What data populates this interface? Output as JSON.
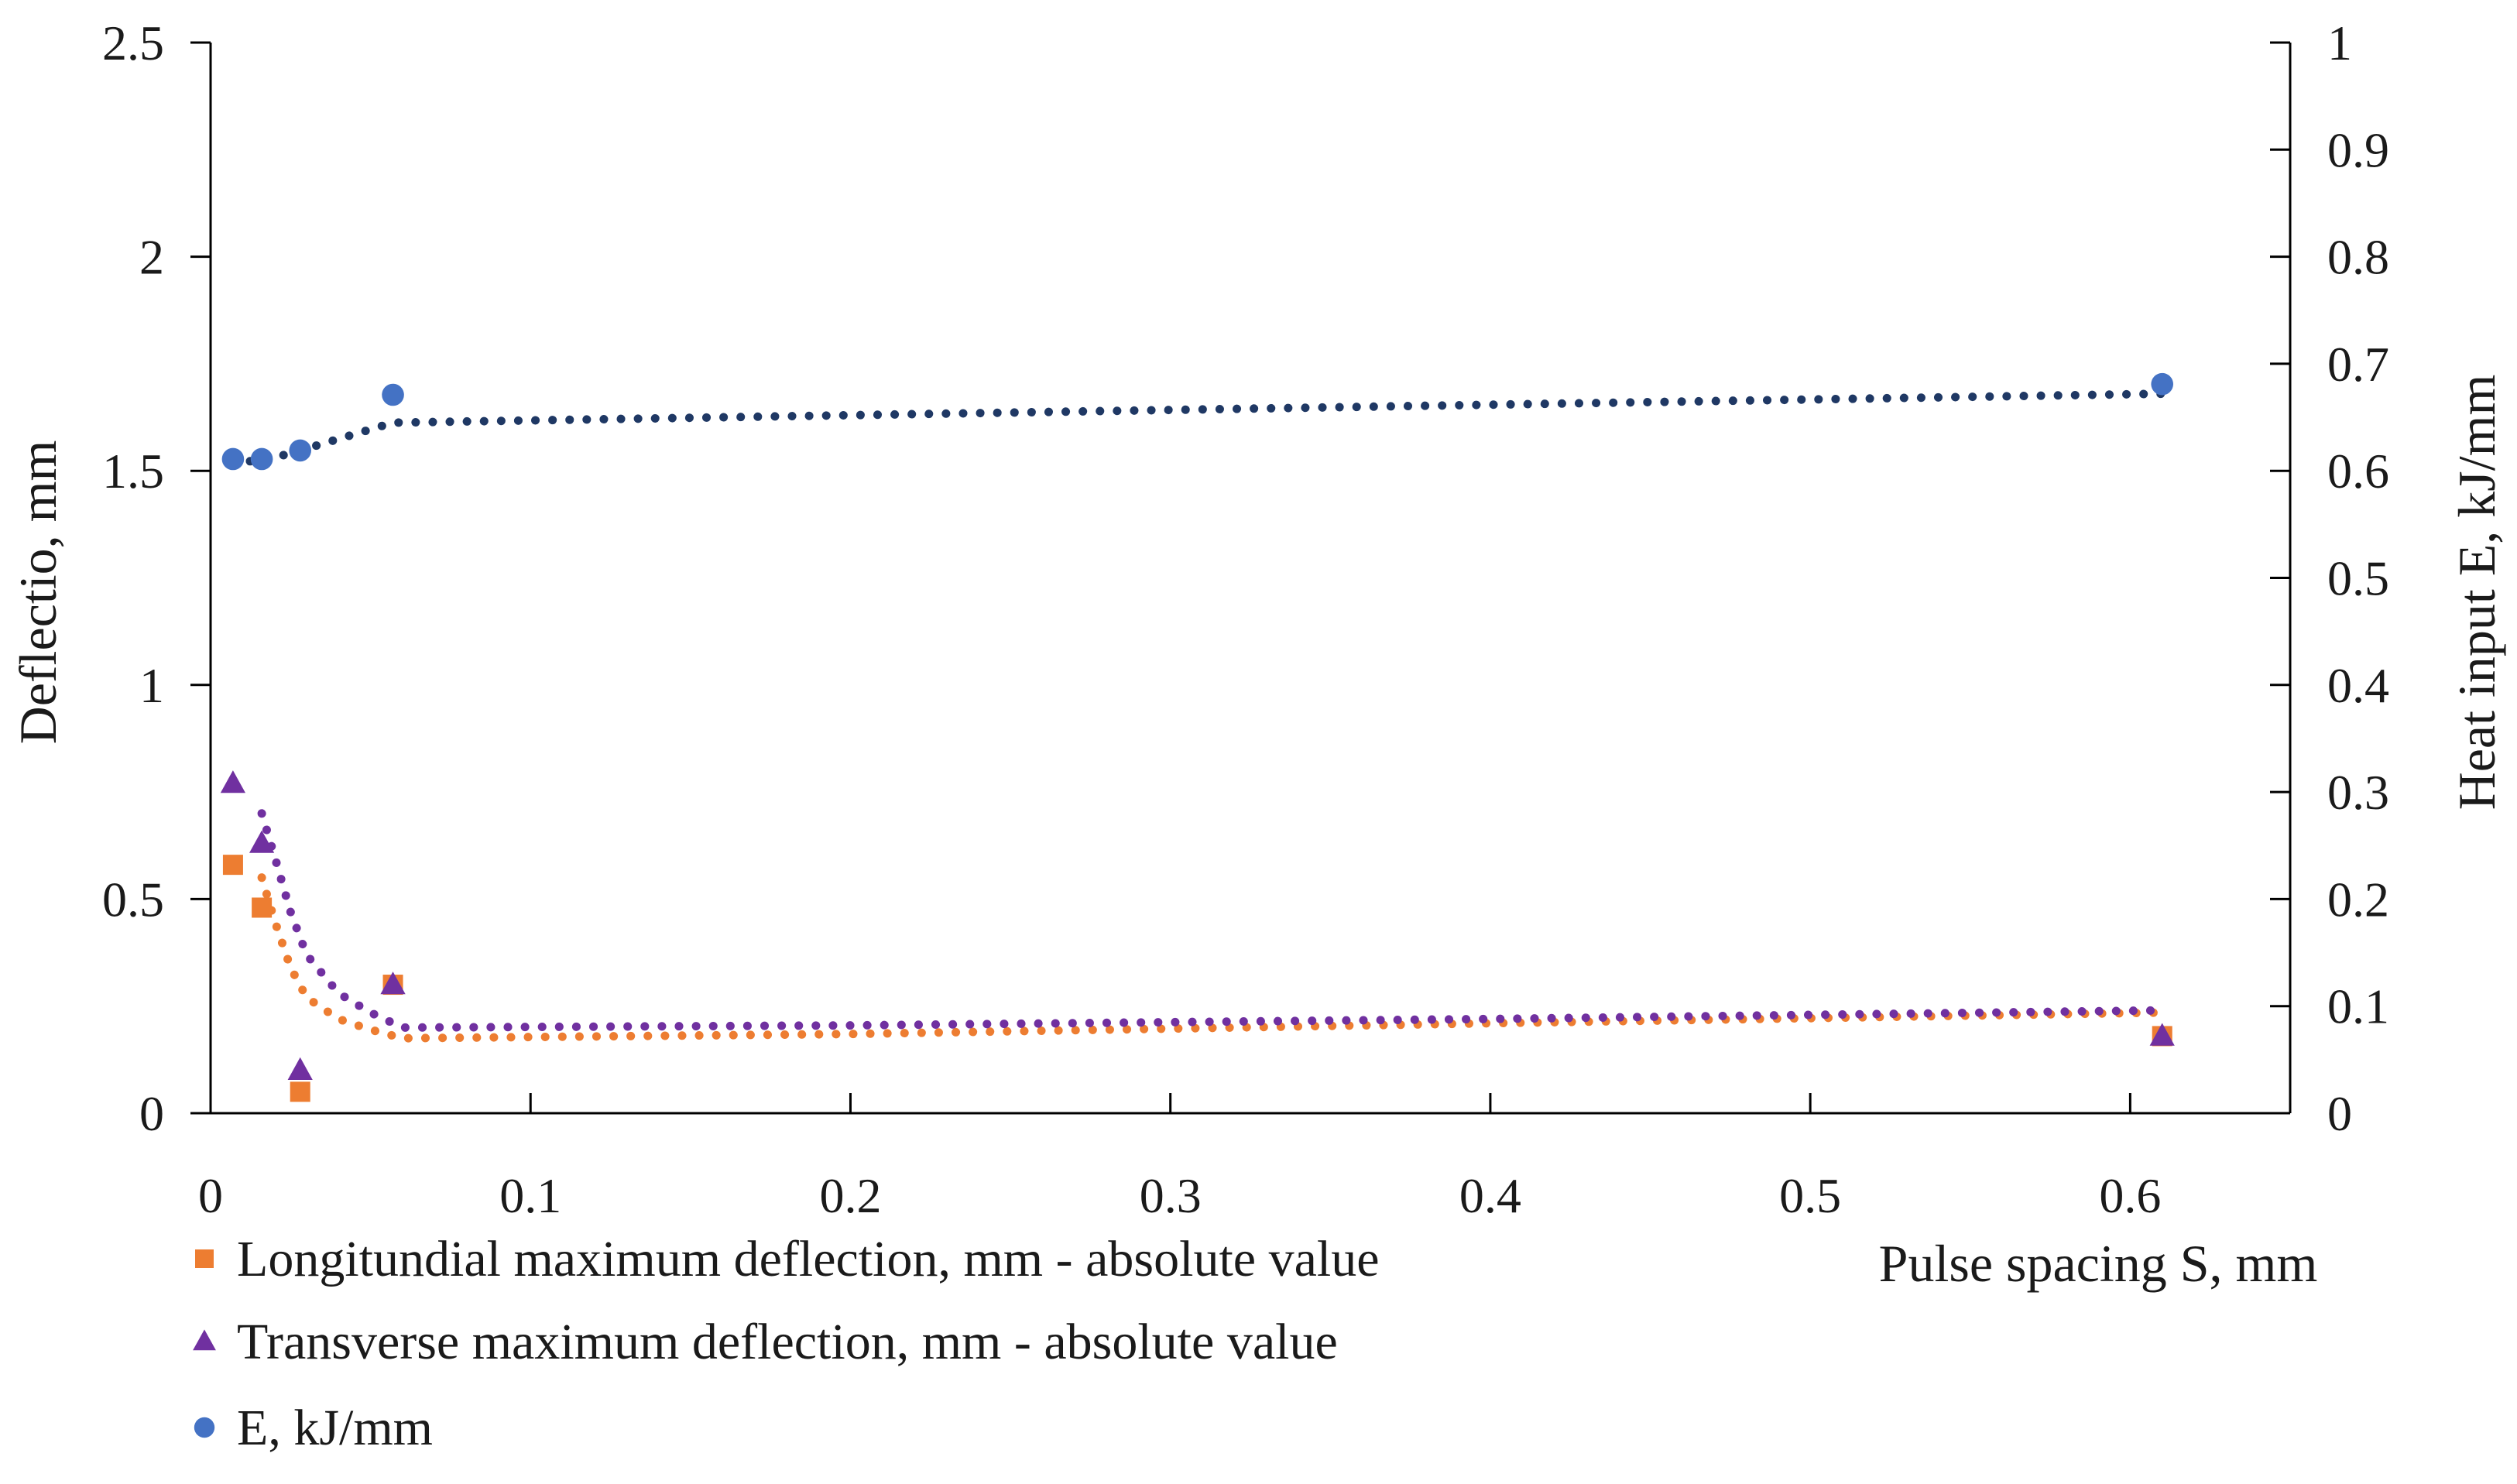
{
  "chart_data": {
    "type": "scatter",
    "title": "",
    "xlabel": "Pulse spacing S, mm",
    "ylabel": "Deflectio, mm",
    "y2label": "Heat input E, kJ/mm",
    "xlim": [
      0,
      0.65
    ],
    "ylim": [
      0,
      2.5
    ],
    "y2lim": [
      0,
      1
    ],
    "x_ticks": [
      "0",
      "0.1",
      "0.2",
      "0.3",
      "0.4",
      "0.5",
      "0.6"
    ],
    "y_ticks": [
      "0",
      "0.5",
      "1",
      "1.5",
      "2",
      "2.5"
    ],
    "y2_ticks": [
      "0",
      "0.1",
      "0.2",
      "0.3",
      "0.4",
      "0.5",
      "0.6",
      "0.7",
      "0.8",
      "0.9",
      "1"
    ],
    "grid": false,
    "series": [
      {
        "name": "Longitundial maximum deflection, mm - absolute value",
        "axis": "left",
        "marker": "square",
        "color": "#ed7d31",
        "x": [
          0.007,
          0.016,
          0.028,
          0.057,
          0.61
        ],
        "values": [
          0.58,
          0.48,
          0.05,
          0.3,
          0.18
        ],
        "trend": [
          [
            0.016,
            0.55
          ],
          [
            0.02,
            0.45
          ],
          [
            0.025,
            0.34
          ],
          [
            0.03,
            0.27
          ],
          [
            0.04,
            0.22
          ],
          [
            0.05,
            0.195
          ],
          [
            0.06,
            0.175
          ],
          [
            0.2,
            0.185
          ],
          [
            0.4,
            0.21
          ],
          [
            0.61,
            0.235
          ]
        ]
      },
      {
        "name": "Transverse maximum deflection, mm - absolute value",
        "axis": "left",
        "marker": "triangle",
        "color": "#7030a0",
        "x": [
          0.007,
          0.016,
          0.028,
          0.057,
          0.61
        ],
        "values": [
          0.77,
          0.63,
          0.1,
          0.3,
          0.18
        ],
        "trend": [
          [
            0.016,
            0.7
          ],
          [
            0.02,
            0.6
          ],
          [
            0.025,
            0.47
          ],
          [
            0.03,
            0.37
          ],
          [
            0.04,
            0.28
          ],
          [
            0.05,
            0.235
          ],
          [
            0.06,
            0.2
          ],
          [
            0.2,
            0.205
          ],
          [
            0.4,
            0.22
          ],
          [
            0.61,
            0.24
          ]
        ]
      },
      {
        "name": "E, kJ/mm",
        "axis": "right",
        "marker": "circle",
        "color": "#4472c4",
        "x": [
          0.007,
          0.016,
          0.028,
          0.057,
          0.61
        ],
        "values": [
          0.611,
          0.611,
          0.619,
          0.671,
          0.681
        ],
        "trend": [
          [
            0.007,
            0.609
          ],
          [
            0.016,
            0.609
          ],
          [
            0.028,
            0.619
          ],
          [
            0.057,
            0.645
          ],
          [
            0.61,
            0.672
          ]
        ]
      }
    ],
    "trend_color": "#1f3864"
  }
}
